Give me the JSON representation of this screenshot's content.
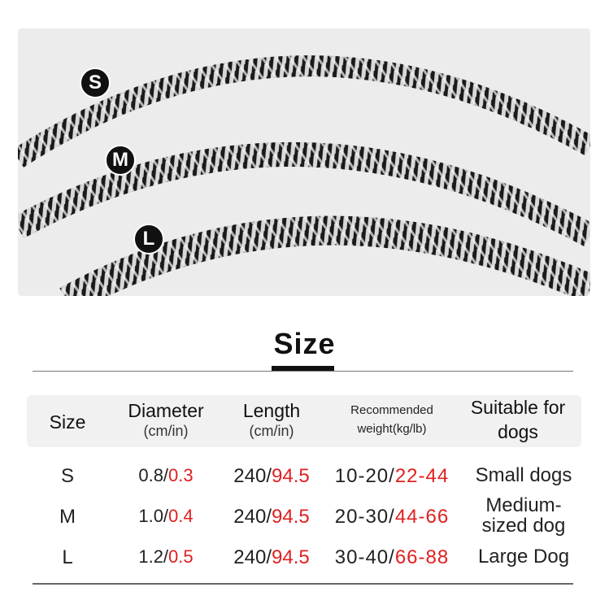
{
  "badges": [
    "S",
    "M",
    "L"
  ],
  "title": "Size",
  "table": {
    "headers": [
      {
        "main": "Size",
        "sub": ""
      },
      {
        "main": "Diameter",
        "sub": "(cm/in)"
      },
      {
        "main": "Length",
        "sub": "(cm/in)"
      },
      {
        "main": "Recommended",
        "sub": "weight(kg/lb)"
      },
      {
        "main": "Suitable for",
        "sub": "dogs"
      }
    ],
    "rows": [
      {
        "size": "S",
        "dia_cm": "0.8/",
        "dia_in": "0.3",
        "len_cm": "240/",
        "len_in": "94.5",
        "w_kg": "10-20/",
        "w_lb": "22-44",
        "suit1": "Small dogs",
        "suit2": ""
      },
      {
        "size": "M",
        "dia_cm": "1.0/",
        "dia_in": "0.4",
        "len_cm": "240/",
        "len_in": "94.5",
        "w_kg": "20-30/",
        "w_lb": "44-66",
        "suit1": "Medium-",
        "suit2": "sized dog"
      },
      {
        "size": "L",
        "dia_cm": "1.2/",
        "dia_in": "0.5",
        "len_cm": "240/",
        "len_in": "94.5",
        "w_kg": "30-40/",
        "w_lb": "66-88",
        "suit1": "Large Dog",
        "suit2": ""
      }
    ]
  },
  "colors": {
    "accent": "#e02020",
    "photo_bg": "#ececec"
  }
}
